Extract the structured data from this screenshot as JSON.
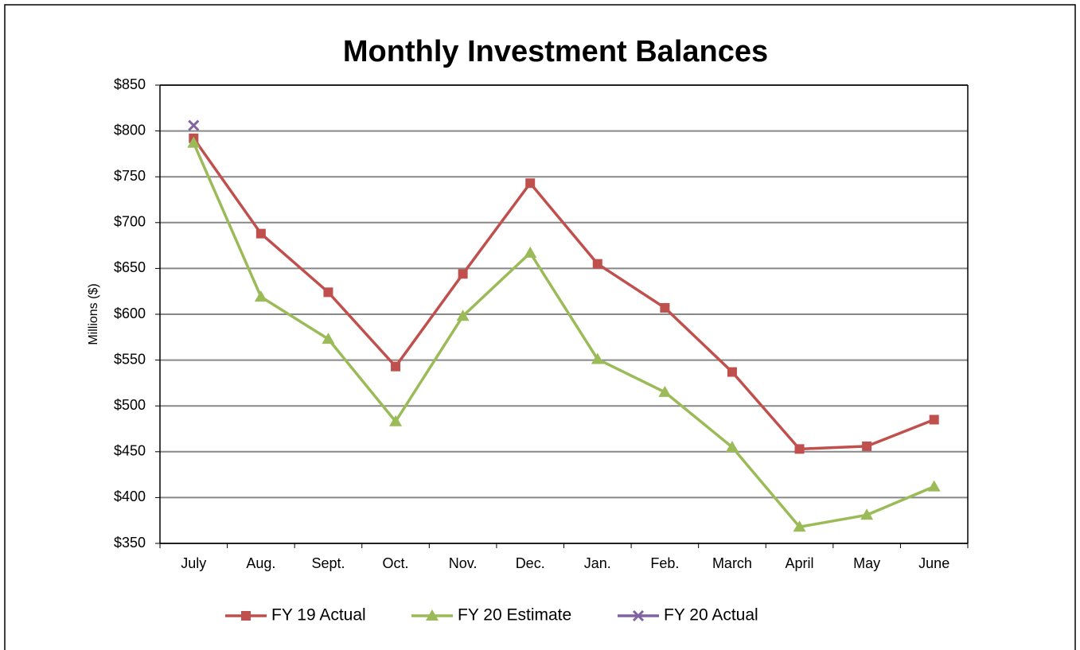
{
  "chart_data": {
    "type": "line",
    "title": "Monthly Investment Balances",
    "y_label": "Millions ($)",
    "categories": [
      "July",
      "Aug.",
      "Sept.",
      "Oct.",
      "Nov.",
      "Dec.",
      "Jan.",
      "Feb.",
      "March",
      "April",
      "May",
      "June"
    ],
    "series": [
      {
        "name": "FY 19 Actual",
        "color": "#c0504d",
        "marker": "square",
        "values": [
          792,
          688,
          624,
          543,
          644,
          743,
          655,
          607,
          537,
          453,
          456,
          485
        ]
      },
      {
        "name": "FY 20 Estimate",
        "color": "#9bbb59",
        "marker": "triangle",
        "values": [
          787,
          619,
          573,
          483,
          598,
          667,
          551,
          515,
          455,
          368,
          381,
          412
        ]
      },
      {
        "name": "FY 20 Actual",
        "color": "#8064a2",
        "marker": "x",
        "values": [
          806,
          null,
          null,
          null,
          null,
          null,
          null,
          null,
          null,
          null,
          null,
          null
        ]
      }
    ],
    "ylim": [
      350,
      850
    ],
    "yticks": [
      {
        "value": 350,
        "label": "$350"
      },
      {
        "value": 400,
        "label": "$400"
      },
      {
        "value": 450,
        "label": "$450"
      },
      {
        "value": 500,
        "label": "$500"
      },
      {
        "value": 550,
        "label": "$550"
      },
      {
        "value": 600,
        "label": "$600"
      },
      {
        "value": 650,
        "label": "$650"
      },
      {
        "value": 700,
        "label": "$700"
      },
      {
        "value": 750,
        "label": "$750"
      },
      {
        "value": 800,
        "label": "$800"
      },
      {
        "value": 850,
        "label": "$850"
      }
    ],
    "grid": true,
    "legend": "bottom"
  }
}
